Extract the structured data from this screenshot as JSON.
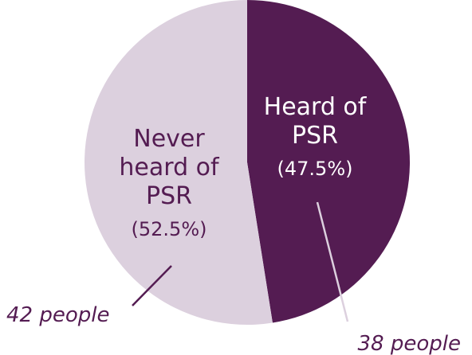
{
  "chart_data": {
    "type": "pie",
    "slices": [
      {
        "label_lines": [
          "Heard of",
          "PSR"
        ],
        "percent_text": "(47.5%)",
        "value": 47.5,
        "count_text": "38 people",
        "color": "#541c52",
        "text_color": "#ffffff",
        "leader_color": "#dcd0de"
      },
      {
        "label_lines": [
          "Never",
          "heard of",
          "PSR"
        ],
        "percent_text": "(52.5%)",
        "value": 52.5,
        "count_text": "42 people",
        "color": "#dcd0de",
        "text_color": "#541c52",
        "leader_color": "#541c52"
      }
    ]
  }
}
